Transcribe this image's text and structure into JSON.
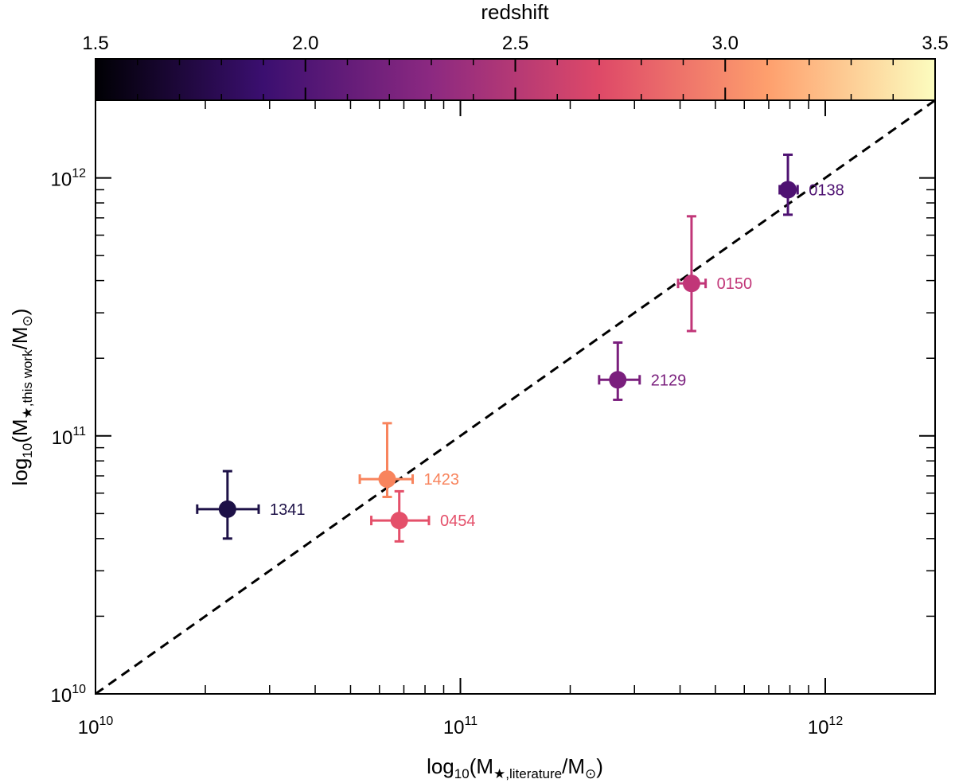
{
  "chart_data": {
    "type": "scatter",
    "xlabel": {
      "base": "log",
      "sub": "10",
      "open": "(M",
      "sub2": "★,literature",
      "close": "/M",
      "sun": "⊙",
      "end": ")"
    },
    "ylabel": {
      "base": "log",
      "sub": "10",
      "open": "(M",
      "sub2": "★,this work",
      "close": "/M",
      "sun": "⊙",
      "end": ")"
    },
    "x_scale": "log",
    "y_scale": "log",
    "xlim": [
      10000000000.0,
      2000000000000.0
    ],
    "ylim": [
      10000000000.0,
      2000000000000.0
    ],
    "x_ticks": [
      {
        "value": 10000000000.0,
        "mantissa": "10",
        "exp": "10"
      },
      {
        "value": 100000000000.0,
        "mantissa": "10",
        "exp": "11"
      },
      {
        "value": 1000000000000.0,
        "mantissa": "10",
        "exp": "12"
      }
    ],
    "y_ticks": [
      {
        "value": 10000000000.0,
        "mantissa": "10",
        "exp": "10"
      },
      {
        "value": 100000000000.0,
        "mantissa": "10",
        "exp": "11"
      },
      {
        "value": 1000000000000.0,
        "mantissa": "10",
        "exp": "12"
      }
    ],
    "reference_line": "one-to-one dashed line",
    "colorbar": {
      "label": "redshift",
      "range": [
        1.5,
        3.5
      ],
      "ticks": [
        "1.5",
        "2.0",
        "2.5",
        "3.0",
        "3.5"
      ],
      "colormap": [
        "#000004",
        "#3b0f70",
        "#8c2981",
        "#de4968",
        "#fe9f6d",
        "#fcfdbf"
      ]
    },
    "points": [
      {
        "label": "1341",
        "x": 23000000000.0,
        "x_err": [
          19000000000.0,
          28000000000.0
        ],
        "y": 52000000000.0,
        "y_err": [
          40000000000.0,
          73000000000.0
        ],
        "redshift": 1.55,
        "color": "#1d1147"
      },
      {
        "label": "1423",
        "x": 63000000000.0,
        "x_err": [
          53000000000.0,
          74000000000.0
        ],
        "y": 68000000000.0,
        "y_err": [
          58000000000.0,
          112000000000.0
        ],
        "redshift": 3.3,
        "color": "#f8845d"
      },
      {
        "label": "0454",
        "x": 68000000000.0,
        "x_err": [
          57000000000.0,
          82000000000.0
        ],
        "y": 47000000000.0,
        "y_err": [
          39000000000.0,
          61000000000.0
        ],
        "redshift": 3.05,
        "color": "#e4506a"
      },
      {
        "label": "2129",
        "x": 270000000000.0,
        "x_err": [
          240000000000.0,
          310000000000.0
        ],
        "y": 165000000000.0,
        "y_err": [
          138000000000.0,
          230000000000.0
        ],
        "redshift": 2.25,
        "color": "#7a1f7d"
      },
      {
        "label": "0150",
        "x": 430000000000.0,
        "x_err": [
          395000000000.0,
          470000000000.0
        ],
        "y": 390000000000.0,
        "y_err": [
          255000000000.0,
          710000000000.0
        ],
        "redshift": 2.7,
        "color": "#c13678"
      },
      {
        "label": "0138",
        "x": 790000000000.0,
        "x_err": [
          750000000000.0,
          840000000000.0
        ],
        "y": 900000000000.0,
        "y_err": [
          720000000000.0,
          1230000000000.0
        ],
        "redshift": 2.0,
        "color": "#4e1272"
      }
    ]
  }
}
